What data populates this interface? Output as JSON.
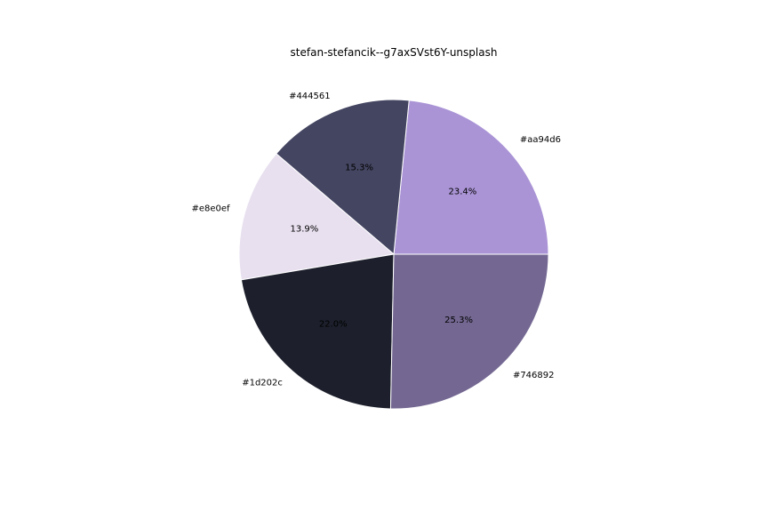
{
  "chart_data": {
    "type": "pie",
    "title": "stefan-stefancik--g7axSVst6Y-unsplash",
    "start_angle_deg": 0,
    "direction": "counterclockwise",
    "slices": [
      {
        "label": "#aa94d6",
        "value": 23.4,
        "pct_label": "23.4%",
        "color": "#aa94d6"
      },
      {
        "label": "#444561",
        "value": 15.3,
        "pct_label": "15.3%",
        "color": "#444561"
      },
      {
        "label": "#e8e0ef",
        "value": 13.9,
        "pct_label": "13.9%",
        "color": "#e8e0ef"
      },
      {
        "label": "#1d202c",
        "value": 22.0,
        "pct_label": "22.0%",
        "color": "#1d202c"
      },
      {
        "label": "#746892",
        "value": 25.3,
        "pct_label": "25.3%",
        "color": "#746892"
      }
    ],
    "edge_color": "#ffffff",
    "legend": "none",
    "grid": false
  }
}
